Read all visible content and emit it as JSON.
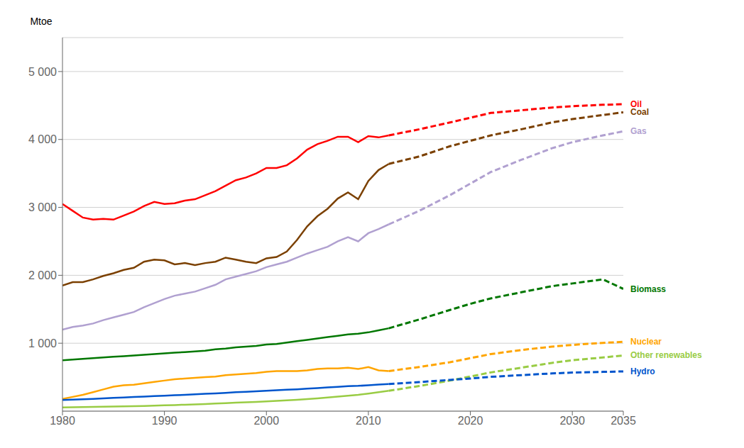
{
  "chart_data": {
    "type": "line",
    "ylabel": "Mtoe",
    "xlim": [
      1980,
      2035
    ],
    "ylim": [
      0,
      5500
    ],
    "xticks": [
      1980,
      1990,
      2000,
      2010,
      2020,
      2030,
      2035
    ],
    "yticks": [
      {
        "value": 1000,
        "label": "1 000"
      },
      {
        "value": 2000,
        "label": "2 000"
      },
      {
        "value": 3000,
        "label": "3 000"
      },
      {
        "value": 4000,
        "label": "4 000"
      },
      {
        "value": 5000,
        "label": "5 000"
      }
    ],
    "grid": true,
    "series": [
      {
        "name": "Oil",
        "color": "#ff0000",
        "line_style": "solid",
        "x": [
          1980,
          1981,
          1982,
          1983,
          1984,
          1985,
          1986,
          1987,
          1988,
          1989,
          1990,
          1991,
          1992,
          1993,
          1994,
          1995,
          1996,
          1997,
          1998,
          1999,
          2000,
          2001,
          2002,
          2003,
          2004,
          2005,
          2006,
          2007,
          2008,
          2009,
          2010,
          2011,
          2012
        ],
        "values": [
          3050,
          2950,
          2850,
          2820,
          2830,
          2820,
          2880,
          2940,
          3020,
          3080,
          3050,
          3060,
          3100,
          3120,
          3180,
          3240,
          3320,
          3400,
          3440,
          3500,
          3580,
          3580,
          3620,
          3720,
          3850,
          3930,
          3980,
          4040,
          4040,
          3960,
          4050,
          4030,
          4060
        ],
        "forecast": {
          "line_style": "dashed",
          "x": [
            2012,
            2015,
            2018,
            2020,
            2022,
            2025,
            2028,
            2030,
            2033,
            2035
          ],
          "values": [
            4060,
            4150,
            4250,
            4320,
            4390,
            4430,
            4470,
            4490,
            4510,
            4520
          ]
        }
      },
      {
        "name": "Coal",
        "color": "#7b4000",
        "line_style": "solid",
        "x": [
          1980,
          1981,
          1982,
          1983,
          1984,
          1985,
          1986,
          1987,
          1988,
          1989,
          1990,
          1991,
          1992,
          1993,
          1994,
          1995,
          1996,
          1997,
          1998,
          1999,
          2000,
          2001,
          2002,
          2003,
          2004,
          2005,
          2006,
          2007,
          2008,
          2009,
          2010,
          2011,
          2012
        ],
        "values": [
          1850,
          1900,
          1900,
          1940,
          1990,
          2030,
          2080,
          2110,
          2200,
          2230,
          2220,
          2160,
          2180,
          2150,
          2180,
          2200,
          2260,
          2230,
          2200,
          2180,
          2250,
          2270,
          2350,
          2520,
          2720,
          2870,
          2980,
          3130,
          3220,
          3120,
          3390,
          3550,
          3640
        ],
        "forecast": {
          "line_style": "dashed",
          "x": [
            2012,
            2015,
            2018,
            2020,
            2022,
            2025,
            2028,
            2030,
            2033,
            2035
          ],
          "values": [
            3640,
            3750,
            3900,
            3980,
            4060,
            4150,
            4250,
            4300,
            4360,
            4400
          ]
        }
      },
      {
        "name": "Gas",
        "color": "#b0a0d0",
        "line_style": "solid",
        "x": [
          1980,
          1981,
          1982,
          1983,
          1984,
          1985,
          1986,
          1987,
          1988,
          1989,
          1990,
          1991,
          1992,
          1993,
          1994,
          1995,
          1996,
          1997,
          1998,
          1999,
          2000,
          2001,
          2002,
          2003,
          2004,
          2005,
          2006,
          2007,
          2008,
          2009,
          2010,
          2011,
          2012
        ],
        "values": [
          1200,
          1240,
          1260,
          1290,
          1340,
          1380,
          1420,
          1460,
          1530,
          1590,
          1650,
          1700,
          1730,
          1760,
          1810,
          1860,
          1940,
          1980,
          2020,
          2060,
          2120,
          2160,
          2200,
          2260,
          2320,
          2370,
          2420,
          2500,
          2560,
          2500,
          2620,
          2680,
          2750
        ],
        "forecast": {
          "line_style": "dashed",
          "x": [
            2012,
            2015,
            2018,
            2020,
            2022,
            2025,
            2028,
            2030,
            2033,
            2035
          ],
          "values": [
            2750,
            2950,
            3180,
            3350,
            3520,
            3700,
            3870,
            3960,
            4060,
            4120
          ]
        }
      },
      {
        "name": "Biomass",
        "color": "#007700",
        "line_style": "solid",
        "x": [
          1980,
          1981,
          1982,
          1983,
          1984,
          1985,
          1986,
          1987,
          1988,
          1989,
          1990,
          1991,
          1992,
          1993,
          1994,
          1995,
          1996,
          1997,
          1998,
          1999,
          2000,
          2001,
          2002,
          2003,
          2004,
          2005,
          2006,
          2007,
          2008,
          2009,
          2010,
          2011,
          2012
        ],
        "values": [
          750,
          760,
          770,
          780,
          790,
          800,
          810,
          820,
          830,
          840,
          850,
          860,
          870,
          880,
          890,
          910,
          920,
          940,
          950,
          960,
          980,
          990,
          1010,
          1030,
          1050,
          1070,
          1090,
          1110,
          1130,
          1140,
          1160,
          1190,
          1220
        ],
        "forecast": {
          "line_style": "dashed",
          "x": [
            2012,
            2015,
            2018,
            2020,
            2022,
            2025,
            2028,
            2030,
            2033,
            2035
          ],
          "values": [
            1220,
            1350,
            1490,
            1580,
            1660,
            1750,
            1840,
            1880,
            1940,
            1800
          ]
        }
      },
      {
        "name": "Nuclear",
        "color": "#ffa500",
        "line_style": "solid",
        "x": [
          1980,
          1981,
          1982,
          1983,
          1984,
          1985,
          1986,
          1987,
          1988,
          1989,
          1990,
          1991,
          1992,
          1993,
          1994,
          1995,
          1996,
          1997,
          1998,
          1999,
          2000,
          2001,
          2002,
          2003,
          2004,
          2005,
          2006,
          2007,
          2008,
          2009,
          2010,
          2011,
          2012
        ],
        "values": [
          180,
          210,
          240,
          280,
          320,
          360,
          380,
          390,
          410,
          430,
          450,
          470,
          480,
          490,
          500,
          510,
          530,
          540,
          550,
          560,
          580,
          590,
          590,
          590,
          600,
          620,
          630,
          630,
          640,
          620,
          650,
          600,
          590
        ],
        "forecast": {
          "line_style": "dashed",
          "x": [
            2012,
            2015,
            2018,
            2020,
            2022,
            2025,
            2028,
            2030,
            2033,
            2035
          ],
          "values": [
            590,
            650,
            720,
            780,
            840,
            900,
            950,
            975,
            1005,
            1020
          ]
        }
      },
      {
        "name": "Other renewables",
        "color": "#99cc44",
        "line_style": "solid",
        "x": [
          1980,
          1981,
          1982,
          1983,
          1984,
          1985,
          1986,
          1987,
          1988,
          1989,
          1990,
          1991,
          1992,
          1993,
          1994,
          1995,
          1996,
          1997,
          1998,
          1999,
          2000,
          2001,
          2002,
          2003,
          2004,
          2005,
          2006,
          2007,
          2008,
          2009,
          2010,
          2011,
          2012
        ],
        "values": [
          55,
          58,
          60,
          62,
          65,
          67,
          70,
          72,
          76,
          80,
          85,
          90,
          95,
          100,
          105,
          112,
          118,
          124,
          130,
          136,
          144,
          152,
          160,
          168,
          178,
          188,
          200,
          214,
          228,
          240,
          258,
          278,
          300
        ],
        "forecast": {
          "line_style": "dashed",
          "x": [
            2012,
            2015,
            2018,
            2020,
            2022,
            2025,
            2028,
            2030,
            2033,
            2035
          ],
          "values": [
            300,
            370,
            450,
            510,
            570,
            640,
            710,
            750,
            790,
            820
          ]
        }
      },
      {
        "name": "Hydro",
        "color": "#0055cc",
        "line_style": "solid",
        "x": [
          1980,
          1981,
          1982,
          1983,
          1984,
          1985,
          1986,
          1987,
          1988,
          1989,
          1990,
          1991,
          1992,
          1993,
          1994,
          1995,
          1996,
          1997,
          1998,
          1999,
          2000,
          2001,
          2002,
          2003,
          2004,
          2005,
          2006,
          2007,
          2008,
          2009,
          2010,
          2011,
          2012
        ],
        "values": [
          165,
          170,
          175,
          180,
          188,
          195,
          200,
          208,
          215,
          222,
          228,
          235,
          240,
          248,
          255,
          262,
          270,
          278,
          285,
          292,
          300,
          308,
          315,
          322,
          332,
          340,
          350,
          358,
          368,
          372,
          382,
          392,
          400
        ],
        "forecast": {
          "line_style": "dashed",
          "x": [
            2012,
            2015,
            2018,
            2020,
            2022,
            2025,
            2028,
            2030,
            2033,
            2035
          ],
          "values": [
            400,
            428,
            460,
            480,
            505,
            530,
            555,
            568,
            578,
            585
          ]
        }
      }
    ]
  }
}
